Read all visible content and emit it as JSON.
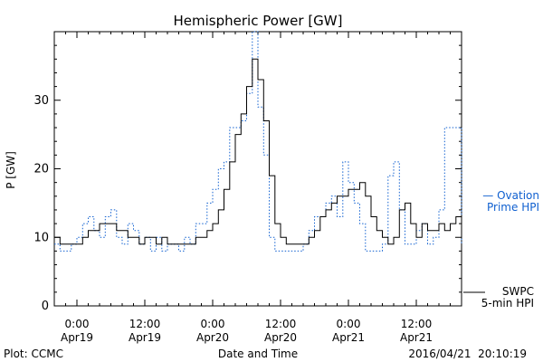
{
  "chart_data": {
    "type": "line",
    "title": "Hemispheric Power [GW]",
    "xlabel": "Date and Time",
    "ylabel": "P [GW]",
    "ylim": [
      0,
      40
    ],
    "xlim_hours": [
      -4,
      68
    ],
    "grid": false,
    "legend": "right",
    "yticks": [
      0,
      10,
      20,
      30
    ],
    "xticks": [
      {
        "hour": 0,
        "time": "0:00",
        "date": "Apr19"
      },
      {
        "hour": 12,
        "time": "12:00",
        "date": "Apr19"
      },
      {
        "hour": 24,
        "time": "0:00",
        "date": "Apr20"
      },
      {
        "hour": 36,
        "time": "12:00",
        "date": "Apr20"
      },
      {
        "hour": 48,
        "time": "0:00",
        "date": "Apr21"
      },
      {
        "hour": 60,
        "time": "12:00",
        "date": "Apr21"
      }
    ],
    "series": [
      {
        "name": "SWPC 5-min HPI",
        "legend_lines": [
          "SWPC",
          "5-min HPI"
        ],
        "color": "#000000",
        "style": "solid",
        "x": [
          -4,
          -3,
          -2,
          -1,
          0,
          1,
          2,
          3,
          4,
          5,
          6,
          7,
          8,
          9,
          10,
          11,
          12,
          13,
          14,
          15,
          16,
          17,
          18,
          19,
          20,
          21,
          22,
          23,
          24,
          25,
          26,
          27,
          28,
          29,
          30,
          31,
          32,
          33,
          34,
          35,
          36,
          37,
          38,
          39,
          40,
          41,
          42,
          43,
          44,
          45,
          46,
          47,
          48,
          49,
          50,
          51,
          52,
          53,
          54,
          55,
          56,
          57,
          58,
          59,
          60,
          61,
          62,
          63,
          64,
          65,
          66,
          67,
          68
        ],
        "y": [
          10,
          9,
          9,
          9,
          9,
          10,
          11,
          11,
          12,
          12,
          12,
          11,
          11,
          10,
          10,
          9,
          10,
          10,
          9,
          10,
          9,
          9,
          9,
          9,
          9,
          10,
          10,
          11,
          12,
          14,
          17,
          21,
          25,
          28,
          32,
          36,
          33,
          27,
          19,
          12,
          10,
          9,
          9,
          9,
          9,
          10,
          11,
          13,
          14,
          15,
          16,
          16,
          17,
          17,
          18,
          16,
          13,
          11,
          10,
          9,
          10,
          14,
          15,
          12,
          10,
          12,
          11,
          11,
          12,
          11,
          12,
          13,
          10
        ]
      },
      {
        "name": "Ovation Prime HPI",
        "legend_lines": [
          "— Ovation",
          "Prime HPI"
        ],
        "color": "#1060d0",
        "style": "dotted",
        "x": [
          -4,
          -3,
          -2,
          -1,
          0,
          1,
          2,
          3,
          4,
          5,
          6,
          7,
          8,
          9,
          10,
          11,
          12,
          13,
          14,
          15,
          16,
          17,
          18,
          19,
          20,
          21,
          22,
          23,
          24,
          25,
          26,
          27,
          28,
          29,
          30,
          31,
          32,
          33,
          34,
          35,
          36,
          37,
          38,
          39,
          40,
          41,
          42,
          43,
          44,
          45,
          46,
          47,
          48,
          49,
          50,
          51,
          52,
          53,
          54,
          55,
          56,
          57,
          58,
          59,
          60,
          61,
          62,
          63,
          64,
          65,
          66,
          67,
          68
        ],
        "y": [
          9,
          8,
          8,
          9,
          10,
          12,
          13,
          11,
          10,
          13,
          14,
          10,
          9,
          12,
          11,
          9,
          10,
          8,
          10,
          8,
          9,
          9,
          8,
          10,
          9,
          12,
          12,
          15,
          17,
          20,
          21,
          26,
          26,
          27,
          31,
          40,
          29,
          22,
          10,
          8,
          8,
          8,
          8,
          8,
          9,
          11,
          13,
          13,
          15,
          16,
          13,
          21,
          18,
          15,
          12,
          8,
          8,
          8,
          9,
          19,
          21,
          14,
          9,
          9,
          11,
          12,
          9,
          10,
          14,
          26,
          26,
          26,
          9
        ]
      }
    ]
  },
  "footer": {
    "left": "Plot: CCMC",
    "right": "2016/04/21  20:10:19"
  }
}
